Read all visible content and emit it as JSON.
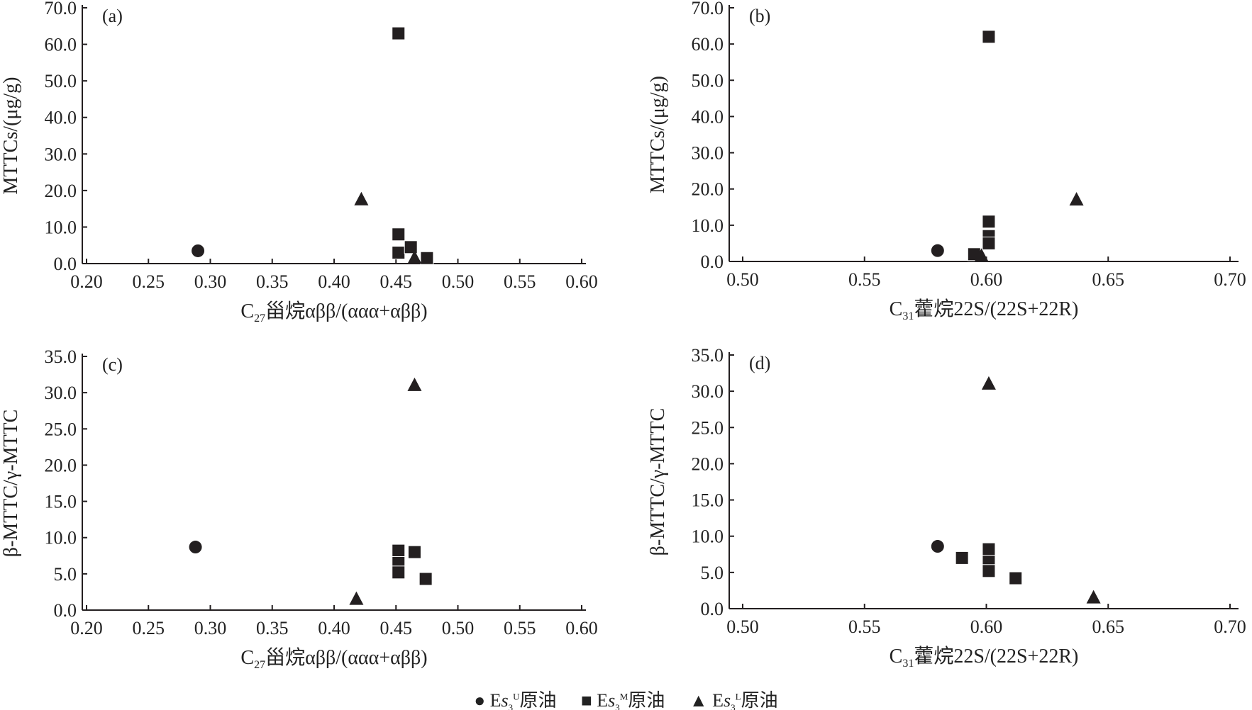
{
  "chart_data": [
    {
      "type": "scatter",
      "panel": "(a)",
      "xlabel": {
        "pre": "C",
        "sub": "27",
        "post": "甾烷αββ/(ααα+αββ)"
      },
      "ylabel": "MTTCs/(μg/g)",
      "xlim": [
        0.2,
        0.6
      ],
      "ylim": [
        0,
        70
      ],
      "xticks": [
        "0.20",
        "0.25",
        "0.30",
        "0.35",
        "0.40",
        "0.45",
        "0.50",
        "0.55",
        "0.60"
      ],
      "yticks": [
        "0.0",
        "10.0",
        "20.0",
        "30.0",
        "40.0",
        "50.0",
        "60.0",
        "70.0"
      ],
      "series": [
        {
          "name": "U",
          "marker": "circle",
          "points": [
            [
              0.29,
              3.5
            ]
          ]
        },
        {
          "name": "M",
          "marker": "square",
          "points": [
            [
              0.452,
              63
            ],
            [
              0.452,
              8
            ],
            [
              0.452,
              3
            ],
            [
              0.462,
              4.5
            ],
            [
              0.475,
              1.5
            ]
          ]
        },
        {
          "name": "L",
          "marker": "triangle",
          "points": [
            [
              0.422,
              17.5
            ],
            [
              0.465,
              1.5
            ]
          ]
        }
      ]
    },
    {
      "type": "scatter",
      "panel": "(b)",
      "xlabel": {
        "pre": "C",
        "sub": "31",
        "post": "藿烷22S/(22S+22R)"
      },
      "ylabel": "MTTCs/(μg/g)",
      "xlim": [
        0.5,
        0.7
      ],
      "ylim": [
        0,
        70
      ],
      "xticks": [
        "0.50",
        "0.55",
        "0.60",
        "0.65",
        "0.70"
      ],
      "yticks": [
        "0.0",
        "10.0",
        "20.0",
        "30.0",
        "40.0",
        "50.0",
        "60.0",
        "70.0"
      ],
      "series": [
        {
          "name": "U",
          "marker": "circle",
          "points": [
            [
              0.58,
              3
            ]
          ]
        },
        {
          "name": "M",
          "marker": "square",
          "points": [
            [
              0.595,
              2
            ],
            [
              0.601,
              62
            ],
            [
              0.601,
              11
            ],
            [
              0.601,
              7
            ],
            [
              0.601,
              5
            ]
          ]
        },
        {
          "name": "L",
          "marker": "triangle",
          "points": [
            [
              0.598,
              1.5
            ],
            [
              0.637,
              17
            ]
          ]
        }
      ]
    },
    {
      "type": "scatter",
      "panel": "(c)",
      "xlabel": {
        "pre": "C",
        "sub": "27",
        "post": "甾烷αββ/(ααα+αββ)"
      },
      "ylabel": "β-MTTC/γ-MTTC",
      "xlim": [
        0.2,
        0.6
      ],
      "ylim": [
        0,
        35
      ],
      "xticks": [
        "0.20",
        "0.25",
        "0.30",
        "0.35",
        "0.40",
        "0.45",
        "0.50",
        "0.55",
        "0.60"
      ],
      "yticks": [
        "0.0",
        "5.0",
        "10.0",
        "15.0",
        "20.0",
        "25.0",
        "30.0",
        "35.0"
      ],
      "series": [
        {
          "name": "U",
          "marker": "circle",
          "points": [
            [
              0.288,
              8.7
            ]
          ]
        },
        {
          "name": "M",
          "marker": "square",
          "points": [
            [
              0.452,
              8.2
            ],
            [
              0.452,
              6.5
            ],
            [
              0.452,
              5.2
            ],
            [
              0.465,
              8.0
            ],
            [
              0.474,
              4.3
            ]
          ]
        },
        {
          "name": "L",
          "marker": "triangle",
          "points": [
            [
              0.418,
              1.5
            ],
            [
              0.465,
              31
            ]
          ]
        }
      ]
    },
    {
      "type": "scatter",
      "panel": "(d)",
      "xlabel": {
        "pre": "C",
        "sub": "31",
        "post": "藿烷22S/(22S+22R)"
      },
      "ylabel": "β-MTTC/γ-MTTC",
      "xlim": [
        0.5,
        0.7
      ],
      "ylim": [
        0,
        35
      ],
      "xticks": [
        "0.50",
        "0.55",
        "0.60",
        "0.65",
        "0.70"
      ],
      "yticks": [
        "0.0",
        "5.0",
        "10.0",
        "15.0",
        "20.0",
        "25.0",
        "30.0",
        "35.0"
      ],
      "series": [
        {
          "name": "U",
          "marker": "circle",
          "points": [
            [
              0.58,
              8.6
            ]
          ]
        },
        {
          "name": "M",
          "marker": "square",
          "points": [
            [
              0.59,
              7.0
            ],
            [
              0.601,
              8.2
            ],
            [
              0.601,
              6.5
            ],
            [
              0.601,
              5.2
            ],
            [
              0.612,
              4.2
            ]
          ]
        },
        {
          "name": "L",
          "marker": "triangle",
          "points": [
            [
              0.601,
              31
            ],
            [
              0.644,
              1.5
            ]
          ]
        }
      ]
    }
  ],
  "legend": [
    {
      "marker": "circle",
      "glyph": "●",
      "pre": "E",
      "italic": "s",
      "sub": "3",
      "sup": "U",
      "post": "原油"
    },
    {
      "marker": "square",
      "glyph": "■",
      "pre": "E",
      "italic": "s",
      "sub": "3",
      "sup": "M",
      "post": "原油"
    },
    {
      "marker": "triangle",
      "glyph": "▲",
      "pre": "E",
      "italic": "s",
      "sub": "3",
      "sup": "L",
      "post": "原油"
    }
  ],
  "colors": {
    "marker": "#231f20",
    "axis": "#231f20"
  }
}
